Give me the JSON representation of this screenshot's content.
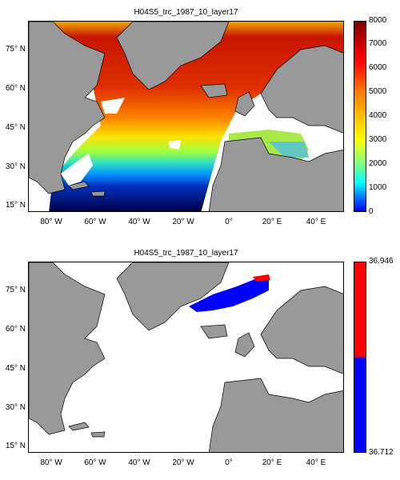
{
  "panels": [
    {
      "title": "H04S5_trc_1987_10_layer17",
      "lat_ticks": [
        "75° N",
        "60° N",
        "45° N",
        "30° N",
        "15° N"
      ],
      "lon_ticks": [
        "80° W",
        "60° W",
        "40° W",
        "20° W",
        "0°",
        "20° E",
        "40° E"
      ],
      "colorbar": {
        "ticks": [
          "8000",
          "7000",
          "6000",
          "5000",
          "4000",
          "3000",
          "2000",
          "1000",
          "0"
        ],
        "colormap": "jet"
      }
    },
    {
      "title": "H04S5_trc_1987_10_layer17",
      "lat_ticks": [
        "75° N",
        "60° N",
        "45° N",
        "30° N",
        "15° N"
      ],
      "lon_ticks": [
        "80° W",
        "60° W",
        "40° W",
        "20° W",
        "0°",
        "20° E",
        "40° E"
      ],
      "colorbar": {
        "ticks": [
          "36.946",
          "36.712"
        ],
        "colors": [
          "#ff0000",
          "#0000ff"
        ]
      }
    }
  ],
  "colors": {
    "land": "#999999",
    "ocean_nodata": "#ffffff"
  }
}
